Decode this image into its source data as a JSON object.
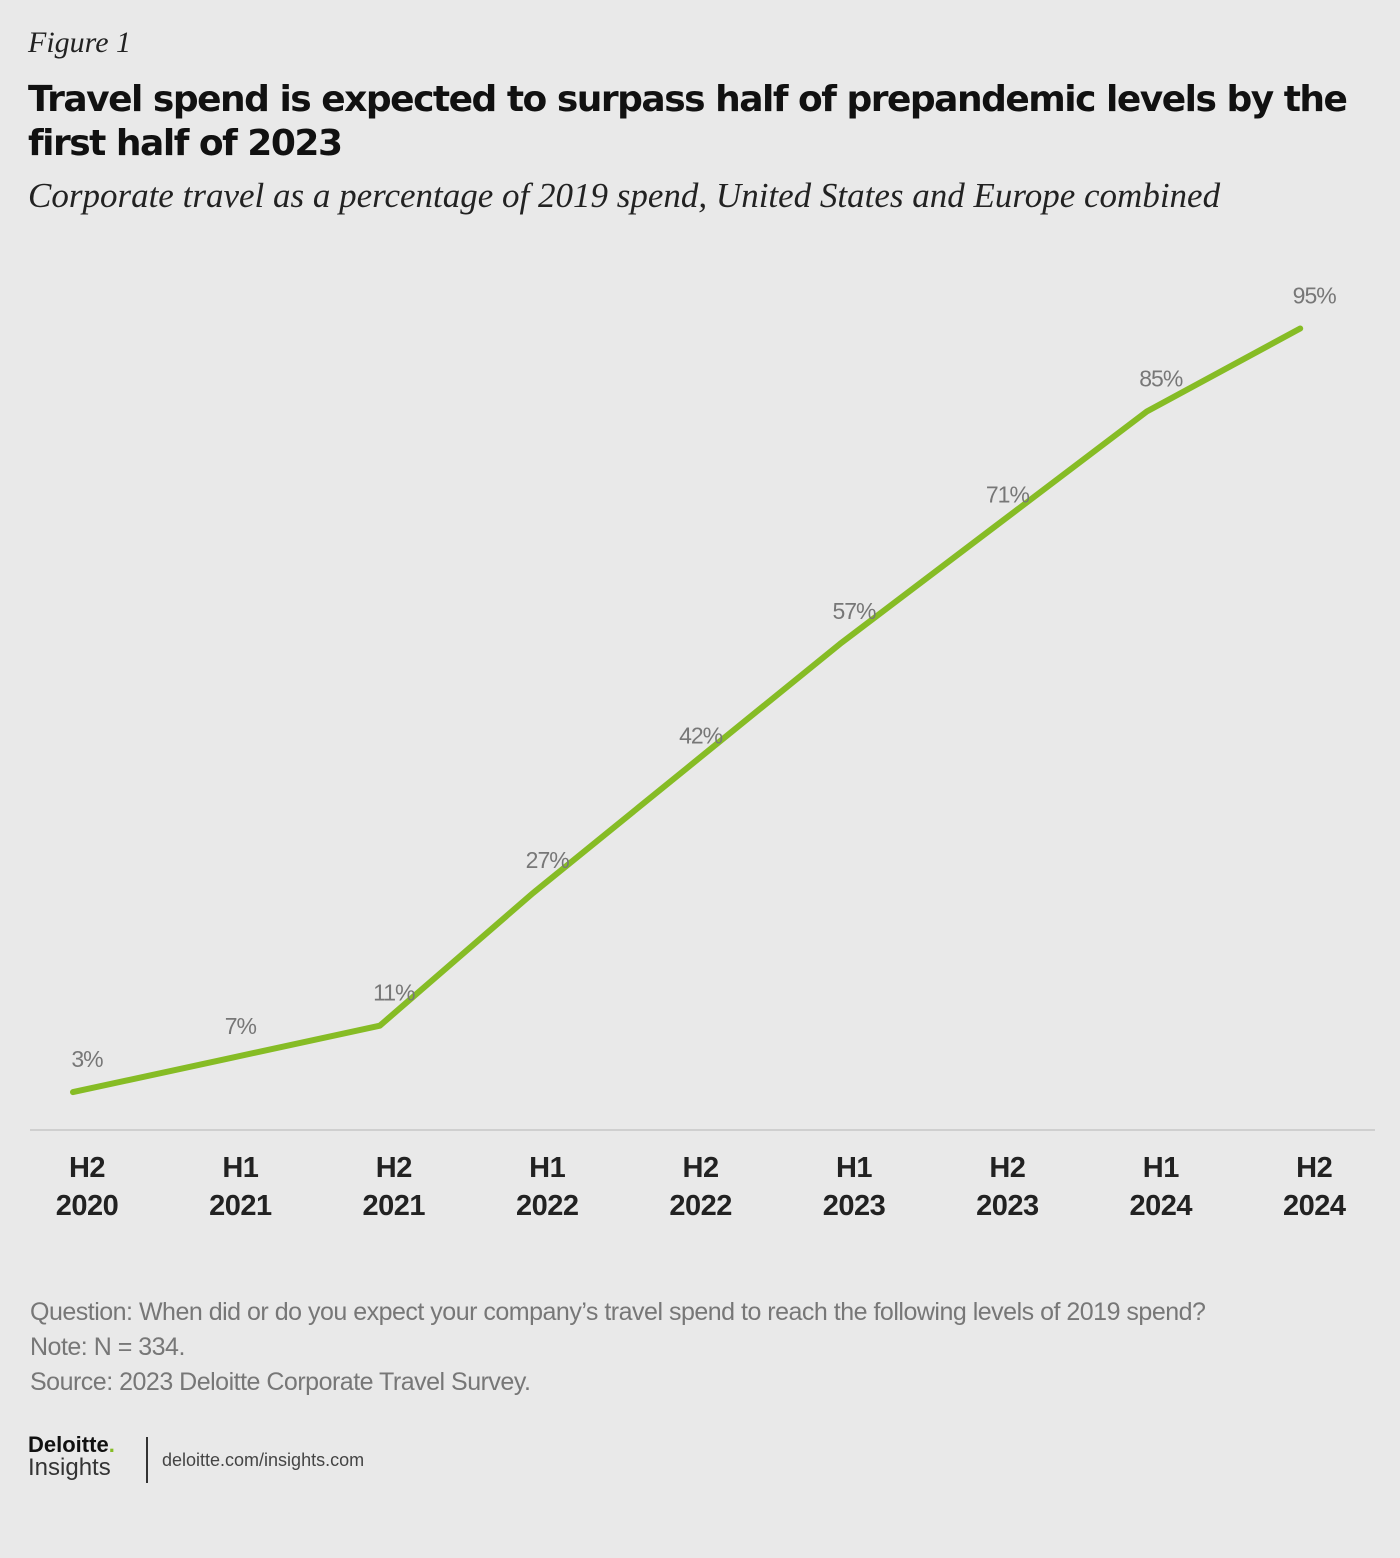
{
  "figure_label": "Figure 1",
  "chart_data": {
    "type": "line",
    "title": "Travel spend is expected to surpass half of prepandemic levels by the first half of 2023",
    "subtitle": "Corporate travel as a percentage of 2019 spend, United States and Europe combined",
    "categories": [
      [
        "H2",
        "2020"
      ],
      [
        "H1",
        "2021"
      ],
      [
        "H2",
        "2021"
      ],
      [
        "H1",
        "2022"
      ],
      [
        "H2",
        "2022"
      ],
      [
        "H1",
        "2023"
      ],
      [
        "H2",
        "2023"
      ],
      [
        "H1",
        "2024"
      ],
      [
        "H2",
        "2024"
      ]
    ],
    "values": [
      3,
      7,
      11,
      27,
      42,
      57,
      71,
      85,
      95
    ],
    "data_labels": [
      "3%",
      "7%",
      "11%",
      "27%",
      "42%",
      "57%",
      "71%",
      "85%",
      "95%"
    ],
    "ylim": [
      0,
      100
    ],
    "grid": false,
    "line_color": "#86bc25"
  },
  "notes": {
    "question": "Question: When did or do you expect your company’s travel spend to reach the following levels of 2019 spend?",
    "note": "Note: N = 334.",
    "source": "Source: 2023 Deloitte Corporate Travel Survey."
  },
  "footer": {
    "logo_text": "Deloitte",
    "logo_sub": "Insights",
    "url": "deloitte.com/insights.com"
  }
}
